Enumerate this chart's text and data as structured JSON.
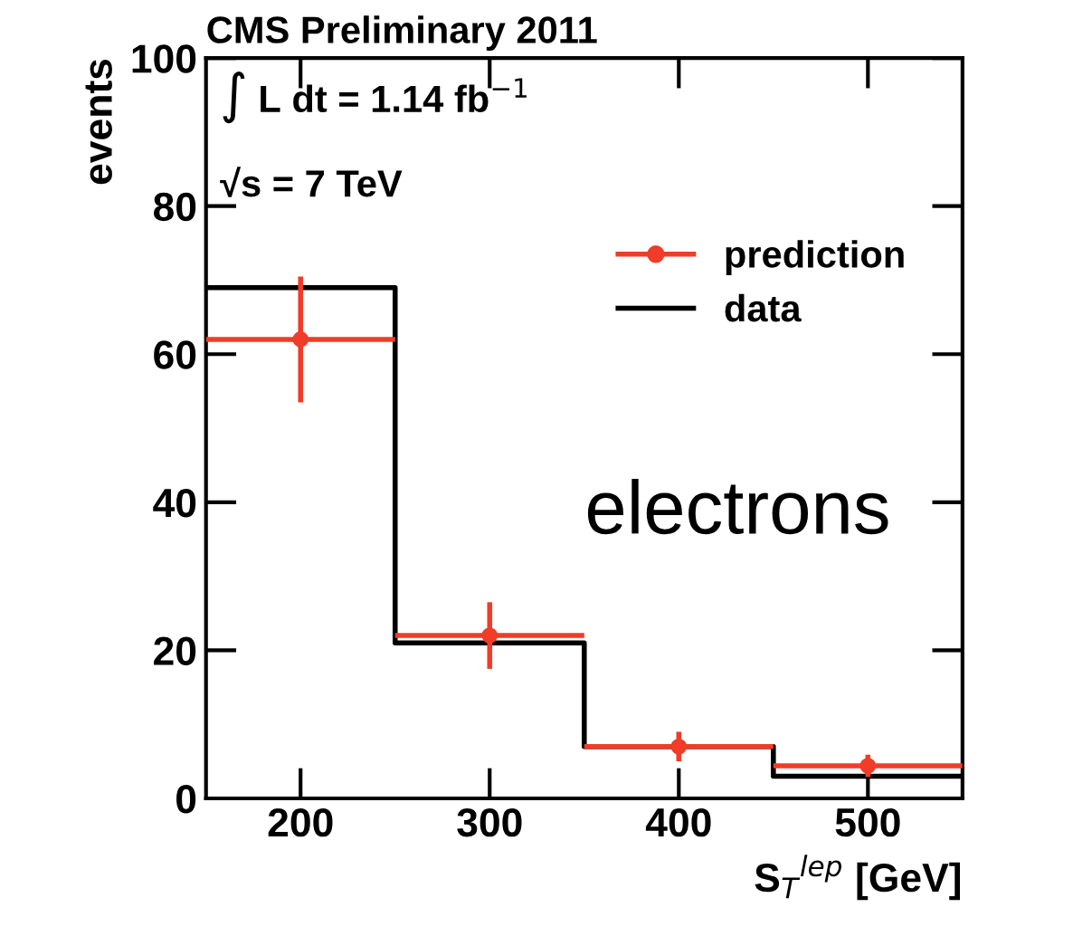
{
  "chart_data": {
    "type": "scatter",
    "title": "CMS Preliminary 2011",
    "xlabel": "S$_{T}$$^{lep}$ [GeV]",
    "ylabel": "events",
    "x": [
      200,
      300,
      400,
      500
    ],
    "series": [
      {
        "name": "prediction",
        "type": "scatter",
        "color": "#f03c28",
        "values": [
          62,
          22,
          7,
          4.4
        ],
        "errors": [
          8.5,
          4.5,
          2,
          1.5
        ],
        "xerrors": [
          50,
          50,
          50,
          50
        ],
        "marker": "circle"
      },
      {
        "name": "data",
        "type": "step",
        "color": "#000000",
        "x": [
          150,
          250,
          350,
          450,
          550
        ],
        "values": [
          69,
          21,
          7,
          3,
          3
        ]
      }
    ],
    "annotations": [
      "∫ L dt = 1.14 fb$^{−1}$",
      "√s = 7 TeV",
      "electrons"
    ],
    "xlim": [
      150,
      550
    ],
    "xticks": [
      200,
      300,
      400,
      500
    ],
    "ylim": [
      0,
      100
    ],
    "yticks": [
      0,
      20,
      40,
      60,
      80,
      100
    ],
    "legend": "top right",
    "grid": false
  }
}
